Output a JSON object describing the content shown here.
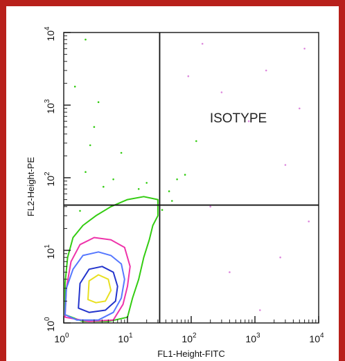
{
  "chart_data": {
    "type": "contour",
    "xlabel": "FL1-Height-FITC",
    "ylabel": "FL2-Height-PE",
    "xscale": "log",
    "yscale": "log",
    "xlim": [
      1,
      10000
    ],
    "ylim": [
      1,
      10000
    ],
    "x_ticks": [
      {
        "base": "10",
        "exp": "0"
      },
      {
        "base": "10",
        "exp": "1"
      },
      {
        "base": "10",
        "exp": "2"
      },
      {
        "base": "10",
        "exp": "3"
      },
      {
        "base": "10",
        "exp": "4"
      }
    ],
    "y_ticks": [
      {
        "base": "10",
        "exp": "0"
      },
      {
        "base": "10",
        "exp": "1"
      },
      {
        "base": "10",
        "exp": "2"
      },
      {
        "base": "10",
        "exp": "3"
      },
      {
        "base": "10",
        "exp": "4"
      }
    ],
    "quadrant_gate": {
      "x": 32,
      "y": 42
    },
    "quadrant_label": "ISOTYPE",
    "grid": false,
    "legend": "none",
    "contours": [
      {
        "level": "outer",
        "color": "#33cc11",
        "points": [
          [
            1.05,
            1.3
          ],
          [
            1.05,
            3.5
          ],
          [
            1.15,
            8
          ],
          [
            1.4,
            15
          ],
          [
            2.0,
            22
          ],
          [
            3.2,
            30
          ],
          [
            5.5,
            40
          ],
          [
            10,
            50
          ],
          [
            18,
            55
          ],
          [
            30,
            50
          ],
          [
            30,
            30
          ],
          [
            25,
            22
          ],
          [
            22,
            14
          ],
          [
            18,
            8
          ],
          [
            15,
            4
          ],
          [
            12,
            2.2
          ],
          [
            10,
            1.2
          ],
          [
            5,
            1.05
          ],
          [
            2,
            1.05
          ]
        ]
      },
      {
        "level": "mid",
        "color": "#ee33aa",
        "points": [
          [
            1.05,
            1.2
          ],
          [
            1.1,
            3
          ],
          [
            1.3,
            7
          ],
          [
            1.8,
            12
          ],
          [
            3,
            15
          ],
          [
            5.5,
            14
          ],
          [
            9,
            11
          ],
          [
            11,
            6
          ],
          [
            10,
            3.2
          ],
          [
            8.5,
            1.8
          ],
          [
            6,
            1.1
          ],
          [
            2.5,
            1.05
          ]
        ]
      },
      {
        "level": "inner",
        "color": "#5577ff",
        "points": [
          [
            1.05,
            1.3
          ],
          [
            1.1,
            3
          ],
          [
            1.4,
            5.5
          ],
          [
            2,
            8.5
          ],
          [
            3.5,
            9.5
          ],
          [
            5.5,
            8.5
          ],
          [
            8,
            6.5
          ],
          [
            9,
            4
          ],
          [
            8,
            2.2
          ],
          [
            6,
            1.4
          ],
          [
            3.5,
            1.1
          ],
          [
            1.6,
            1.1
          ]
        ]
      },
      {
        "level": "core",
        "color": "#2233cc",
        "points": [
          [
            1.7,
            1.6
          ],
          [
            1.8,
            3.5
          ],
          [
            2.5,
            5.5
          ],
          [
            4,
            6
          ],
          [
            6,
            5
          ],
          [
            7,
            3.2
          ],
          [
            6.5,
            2
          ],
          [
            4.5,
            1.5
          ],
          [
            2.5,
            1.4
          ]
        ]
      },
      {
        "level": "peak",
        "color": "#e8e020",
        "points": [
          [
            2.4,
            2.1
          ],
          [
            2.5,
            3.8
          ],
          [
            3.5,
            4.6
          ],
          [
            5,
            4
          ],
          [
            5.5,
            2.8
          ],
          [
            4.5,
            2
          ],
          [
            3.2,
            1.9
          ]
        ]
      }
    ],
    "scatter_points": [
      {
        "x": 1.8,
        "y": 35,
        "color": "#33cc11"
      },
      {
        "x": 2.2,
        "y": 120,
        "color": "#33cc11"
      },
      {
        "x": 3.0,
        "y": 500,
        "color": "#33cc11"
      },
      {
        "x": 3.5,
        "y": 1100,
        "color": "#33cc11"
      },
      {
        "x": 1.5,
        "y": 1800,
        "color": "#33cc11"
      },
      {
        "x": 2.6,
        "y": 280,
        "color": "#33cc11"
      },
      {
        "x": 4.2,
        "y": 75,
        "color": "#33cc11"
      },
      {
        "x": 6,
        "y": 95,
        "color": "#33cc11"
      },
      {
        "x": 8,
        "y": 220,
        "color": "#33cc11"
      },
      {
        "x": 2.2,
        "y": 8000,
        "color": "#33cc11"
      },
      {
        "x": 45,
        "y": 65,
        "color": "#33cc11"
      },
      {
        "x": 60,
        "y": 95,
        "color": "#33cc11"
      },
      {
        "x": 80,
        "y": 110,
        "color": "#33cc11"
      },
      {
        "x": 120,
        "y": 320,
        "color": "#33cc11"
      },
      {
        "x": 35,
        "y": 36,
        "color": "#33cc11"
      },
      {
        "x": 50,
        "y": 48,
        "color": "#33cc11"
      },
      {
        "x": 15,
        "y": 70,
        "color": "#33cc11"
      },
      {
        "x": 20,
        "y": 85,
        "color": "#33cc11"
      },
      {
        "x": 300,
        "y": 1500,
        "color": "#dd88dd"
      },
      {
        "x": 800,
        "y": 600,
        "color": "#dd88dd"
      },
      {
        "x": 1500,
        "y": 3000,
        "color": "#dd88dd"
      },
      {
        "x": 3000,
        "y": 150,
        "color": "#dd88dd"
      },
      {
        "x": 5000,
        "y": 900,
        "color": "#dd88dd"
      },
      {
        "x": 200,
        "y": 40,
        "color": "#dd88dd"
      },
      {
        "x": 2500,
        "y": 8,
        "color": "#dd88dd"
      },
      {
        "x": 7000,
        "y": 25,
        "color": "#dd88dd"
      },
      {
        "x": 400,
        "y": 5,
        "color": "#dd88dd"
      },
      {
        "x": 1200,
        "y": 1.5,
        "color": "#dd88dd"
      },
      {
        "x": 6000,
        "y": 6000,
        "color": "#dd88dd"
      },
      {
        "x": 90,
        "y": 2500,
        "color": "#dd88dd"
      },
      {
        "x": 150,
        "y": 7000,
        "color": "#dd88dd"
      }
    ]
  },
  "colors": {
    "frame": "#b8201b",
    "axis": "#222222",
    "gate": "#111111"
  }
}
